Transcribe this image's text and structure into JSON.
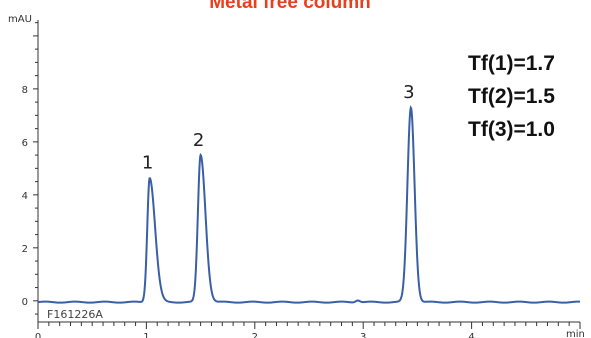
{
  "chart_data": {
    "type": "line",
    "title": "Metal free column",
    "y_unit": "mAU",
    "x_unit": "min",
    "xlim": [
      0,
      5
    ],
    "ylim": [
      -0.8,
      10.6
    ],
    "x_ticks": [
      "0",
      "1",
      "2",
      "3",
      "4"
    ],
    "y_ticks": [
      "0",
      "2",
      "4",
      "6",
      "8"
    ],
    "x_tick_values": [
      0,
      1,
      2,
      3,
      4
    ],
    "y_tick_values": [
      0,
      2,
      4,
      6,
      8
    ],
    "minor_x_step": 0.1,
    "minor_y_step": 0.5,
    "baseline": -0.05,
    "series": [
      {
        "color": "#3a5fa6",
        "peaks": [
          {
            "label": "1",
            "rt": 1.03,
            "height": 4.7,
            "width_front": 0.022,
            "width_tail": 0.05
          },
          {
            "label": "2",
            "rt": 1.5,
            "height": 5.55,
            "width_front": 0.025,
            "width_tail": 0.045
          },
          {
            "label": "3",
            "rt": 3.44,
            "height": 7.35,
            "width_front": 0.032,
            "width_tail": 0.034
          }
        ]
      }
    ],
    "annotations": [
      "Tf(1)=1.7",
      "Tf(2)=1.5",
      "Tf(3)=1.0"
    ],
    "file_id": "F161226A"
  },
  "colors": {
    "title": "#e8401c",
    "trace": "#3a5fa6",
    "axis": "#333333"
  }
}
